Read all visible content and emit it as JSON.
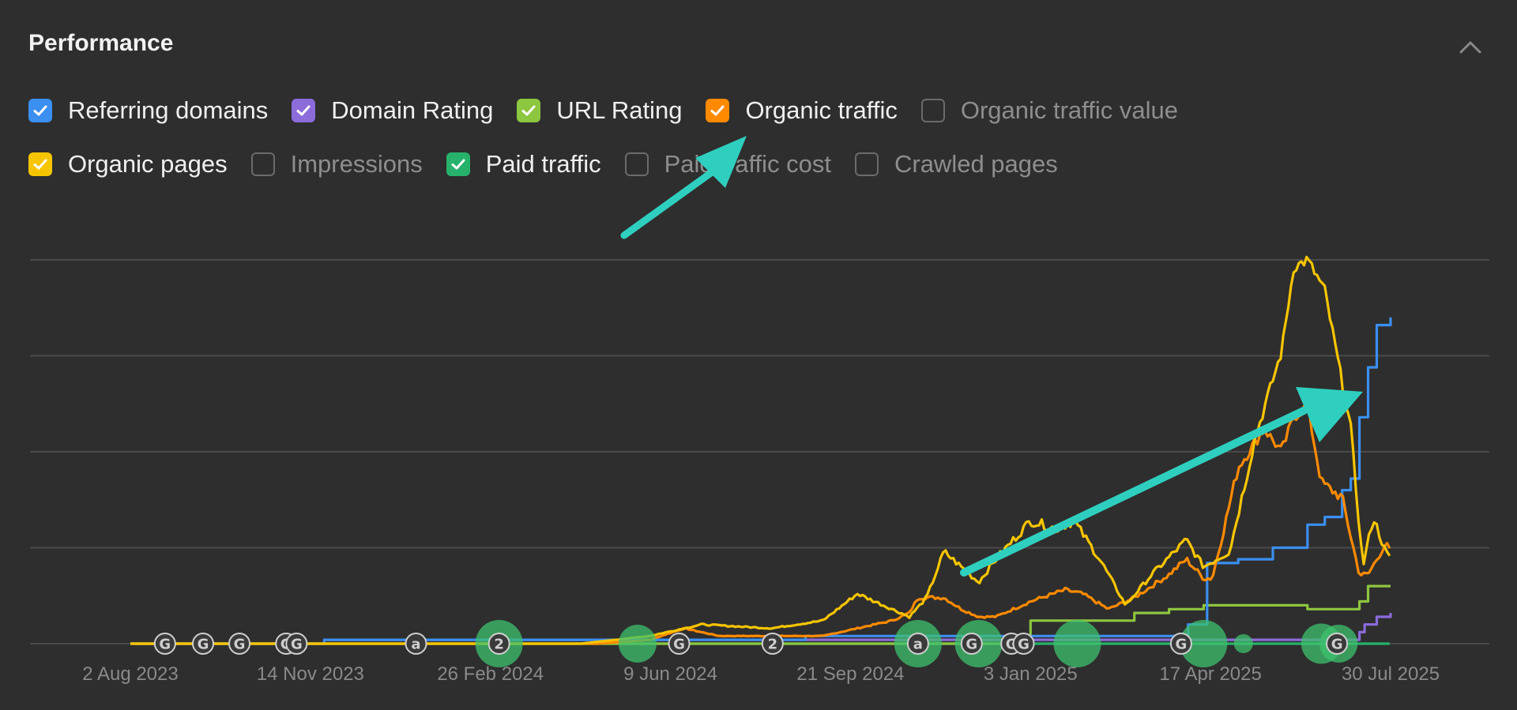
{
  "header": {
    "title": "Performance"
  },
  "legend": [
    {
      "label": "Referring domains",
      "checked": true,
      "color": "#3b8ff0"
    },
    {
      "label": "Domain Rating",
      "checked": true,
      "color": "#8c6bdb"
    },
    {
      "label": "URL Rating",
      "checked": true,
      "color": "#8dc63f"
    },
    {
      "label": "Organic traffic",
      "checked": true,
      "color": "#ff8a00"
    },
    {
      "label": "Organic traffic value",
      "checked": false,
      "color": "#6b6b6b"
    },
    {
      "label": "Organic pages",
      "checked": true,
      "color": "#f7c500"
    },
    {
      "label": "Impressions",
      "checked": false,
      "color": "#6b6b6b"
    },
    {
      "label": "Paid traffic",
      "checked": true,
      "color": "#27b26b"
    },
    {
      "label": "Paid traffic cost",
      "checked": false,
      "color": "#6b6b6b"
    },
    {
      "label": "Crawled pages",
      "checked": false,
      "color": "#6b6b6b"
    }
  ],
  "chart_data": {
    "type": "line",
    "title": "Performance",
    "x_range": [
      "2 Aug 2023",
      "30 Jul 2025"
    ],
    "tick_labels": [
      "2 Aug 2023",
      "14 Nov 2023",
      "26 Feb 2024",
      "9 Jun 2024",
      "21 Sep 2024",
      "3 Jan 2025",
      "17 Apr 2025",
      "30 Jul 2025"
    ],
    "tick_days": [
      0,
      104,
      208,
      312,
      416,
      520,
      624,
      728
    ],
    "ylim": [
      0,
      100
    ],
    "grid": true,
    "series": [
      {
        "name": "Organic pages",
        "color": "#f7c500",
        "x": [
          0,
          260,
          300,
          330,
          370,
          400,
          420,
          440,
          450,
          460,
          470,
          490,
          500,
          520,
          535,
          545,
          560,
          575,
          590,
          610,
          620,
          635,
          650,
          665,
          672,
          680,
          690,
          705,
          712,
          718,
          725,
          728
        ],
        "y": [
          0,
          0,
          2,
          5,
          4,
          6,
          13,
          9,
          7,
          12,
          24,
          16,
          22,
          32,
          30,
          32,
          22,
          10,
          18,
          27,
          20,
          24,
          54,
          76,
          98,
          100,
          92,
          56,
          20,
          33,
          24,
          22
        ]
      },
      {
        "name": "Organic traffic",
        "color": "#ff8a00",
        "x": [
          0,
          270,
          300,
          320,
          340,
          400,
          440,
          450,
          455,
          470,
          480,
          490,
          500,
          520,
          540,
          550,
          565,
          580,
          600,
          610,
          620,
          625,
          640,
          655,
          665,
          672,
          680,
          688,
          700,
          710,
          715,
          725,
          728
        ],
        "y": [
          0,
          0,
          1,
          4,
          2,
          2,
          6,
          8,
          12,
          12,
          9,
          7,
          7,
          11,
          14,
          13,
          9,
          12,
          18,
          22,
          17,
          17,
          46,
          56,
          50,
          59,
          62,
          42,
          38,
          18,
          18,
          26,
          24
        ]
      },
      {
        "name": "Referring domains",
        "color": "#3b8ff0",
        "x": [
          0,
          112,
          390,
          470,
          600,
          611,
          622,
          640,
          660,
          680,
          690,
          700,
          705,
          710,
          715,
          720,
          728
        ],
        "y": [
          0,
          1,
          2,
          2,
          2,
          5,
          21,
          22,
          25,
          31,
          33,
          40,
          43,
          59,
          72,
          83,
          85
        ]
      },
      {
        "name": "URL Rating",
        "color": "#8dc63f",
        "x": [
          0,
          500,
          520,
          560,
          580,
          600,
          620,
          680,
          700,
          710,
          715,
          728
        ],
        "y": [
          0,
          0,
          6,
          6,
          8,
          9,
          10,
          9,
          9,
          11,
          15,
          15
        ]
      },
      {
        "name": "Domain Rating",
        "color": "#8c6bdb",
        "x": [
          0,
          112,
          500,
          640,
          700,
          710,
          713,
          720,
          728
        ],
        "y": [
          0,
          1,
          1,
          1,
          1,
          3,
          5,
          7,
          8
        ]
      },
      {
        "name": "Paid traffic",
        "color": "#27b26b",
        "x": [
          0,
          728
        ],
        "y": [
          0,
          0
        ]
      }
    ],
    "annotations": [
      {
        "day": 20,
        "type": "google-update",
        "text": "G"
      },
      {
        "day": 42,
        "type": "google-update",
        "text": "G"
      },
      {
        "day": 63,
        "type": "google-update",
        "text": "G"
      },
      {
        "day": 90,
        "type": "google-update",
        "text": "G"
      },
      {
        "day": 96,
        "type": "google-update",
        "text": "G"
      },
      {
        "day": 165,
        "type": "ahrefs-update",
        "text": "a"
      },
      {
        "day": 213,
        "type": "count",
        "text": "2"
      },
      {
        "day": 317,
        "type": "google-update",
        "text": "G"
      },
      {
        "day": 371,
        "type": "count",
        "text": "2"
      },
      {
        "day": 455,
        "type": "ahrefs-update",
        "text": "a"
      },
      {
        "day": 486,
        "type": "google-update",
        "text": "G"
      },
      {
        "day": 509,
        "type": "google-update",
        "text": "G"
      },
      {
        "day": 516,
        "type": "google-update",
        "text": "G"
      },
      {
        "day": 607,
        "type": "google-update",
        "text": "G"
      },
      {
        "day": 697,
        "type": "google-update",
        "text": "G"
      }
    ],
    "paid_bubbles": [
      {
        "day": 213,
        "size": 1.0
      },
      {
        "day": 293,
        "size": 0.8
      },
      {
        "day": 455,
        "size": 1.0
      },
      {
        "day": 490,
        "size": 1.0
      },
      {
        "day": 547,
        "size": 1.0
      },
      {
        "day": 620,
        "size": 1.0
      },
      {
        "day": 643,
        "size": 0.4
      },
      {
        "day": 688,
        "size": 0.85
      },
      {
        "day": 698,
        "size": 0.8
      }
    ]
  }
}
